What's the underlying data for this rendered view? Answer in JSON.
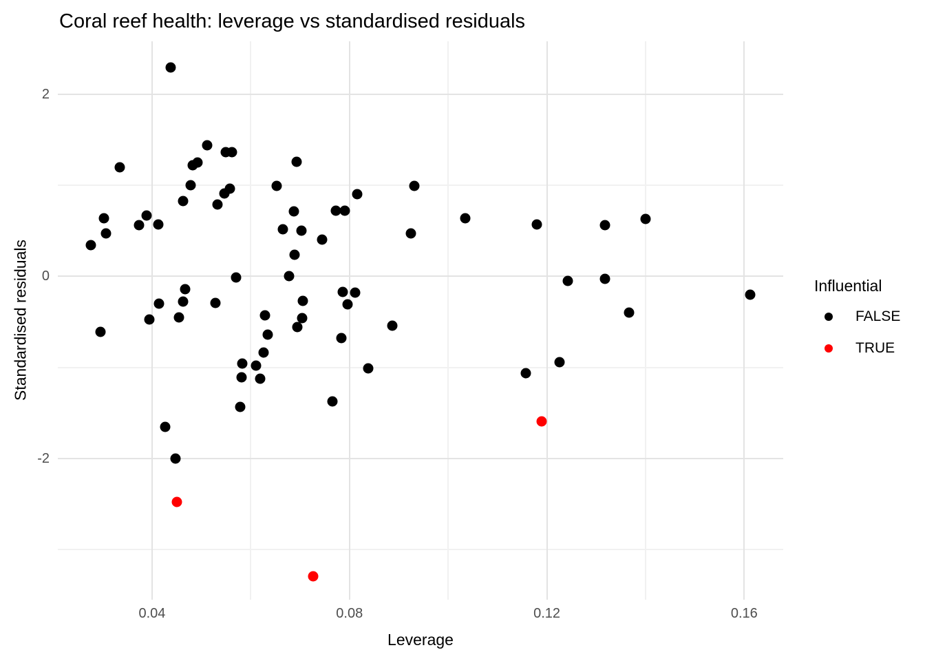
{
  "chart_data": {
    "type": "scatter",
    "title": "Coral reef health: leverage vs standardised residuals",
    "xlabel": "Leverage",
    "ylabel": "Standardised residuals",
    "xlim": [
      0.0209,
      0.1679
    ],
    "ylim": [
      -3.55,
      2.58
    ],
    "x_ticks": [
      0.04,
      0.08,
      0.12,
      0.16
    ],
    "x_tick_labels": [
      "0.04",
      "0.08",
      "0.12",
      "0.16"
    ],
    "y_ticks": [
      2,
      0,
      -2
    ],
    "y_tick_labels": [
      "2",
      "0",
      "-2"
    ],
    "x_minor_gridlines": [
      0.06,
      0.1,
      0.14
    ],
    "y_minor_gridlines": [
      1,
      -1,
      -3
    ],
    "grid": true,
    "legend": {
      "title": "Influential",
      "position": "right",
      "entries": [
        {
          "label": "FALSE",
          "color": "#000000"
        },
        {
          "label": "TRUE",
          "color": "#ff0000"
        }
      ]
    },
    "series": [
      {
        "name": "FALSE",
        "color": "#000000",
        "points": [
          [
            0.0438,
            2.29
          ],
          [
            0.0334,
            1.2
          ],
          [
            0.0512,
            1.44
          ],
          [
            0.0549,
            1.36
          ],
          [
            0.0562,
            1.36
          ],
          [
            0.0482,
            1.22
          ],
          [
            0.0492,
            1.25
          ],
          [
            0.0693,
            1.26
          ],
          [
            0.0478,
            1.0
          ],
          [
            0.0547,
            0.91
          ],
          [
            0.0558,
            0.96
          ],
          [
            0.0653,
            0.99
          ],
          [
            0.0463,
            0.83
          ],
          [
            0.0533,
            0.79
          ],
          [
            0.0687,
            0.71
          ],
          [
            0.0303,
            0.64
          ],
          [
            0.0389,
            0.67
          ],
          [
            0.0373,
            0.56
          ],
          [
            0.0413,
            0.57
          ],
          [
            0.0773,
            0.72
          ],
          [
            0.079,
            0.72
          ],
          [
            0.0665,
            0.52
          ],
          [
            0.0703,
            0.5
          ],
          [
            0.0307,
            0.47
          ],
          [
            0.0276,
            0.34
          ],
          [
            0.0744,
            0.4
          ],
          [
            0.0689,
            0.24
          ],
          [
            0.0932,
            0.99
          ],
          [
            0.0816,
            0.9
          ],
          [
            0.1035,
            0.64
          ],
          [
            0.118,
            0.57
          ],
          [
            0.1318,
            0.56
          ],
          [
            0.0924,
            0.47
          ],
          [
            0.14,
            0.63
          ],
          [
            0.057,
            -0.01
          ],
          [
            0.0677,
            0.0
          ],
          [
            0.0467,
            -0.14
          ],
          [
            0.0414,
            -0.3
          ],
          [
            0.0463,
            -0.28
          ],
          [
            0.0529,
            -0.29
          ],
          [
            0.0395,
            -0.47
          ],
          [
            0.0455,
            -0.45
          ],
          [
            0.0296,
            -0.61
          ],
          [
            0.0629,
            -0.43
          ],
          [
            0.0635,
            -0.64
          ],
          [
            0.0706,
            -0.27
          ],
          [
            0.0704,
            -0.46
          ],
          [
            0.0695,
            -0.56
          ],
          [
            0.0626,
            -0.84
          ],
          [
            0.0583,
            -0.96
          ],
          [
            0.061,
            -0.98
          ],
          [
            0.0582,
            -1.11
          ],
          [
            0.0619,
            -1.12
          ],
          [
            0.0786,
            -0.17
          ],
          [
            0.0812,
            -0.18
          ],
          [
            0.0796,
            -0.31
          ],
          [
            0.0784,
            -0.68
          ],
          [
            0.0887,
            -0.54
          ],
          [
            0.0838,
            -1.01
          ],
          [
            0.0765,
            -1.37
          ],
          [
            0.0579,
            -1.43
          ],
          [
            0.0427,
            -1.65
          ],
          [
            0.0448,
            -2.0
          ],
          [
            0.1242,
            -0.05
          ],
          [
            0.1318,
            -0.03
          ],
          [
            0.1366,
            -0.4
          ],
          [
            0.1226,
            -0.94
          ],
          [
            0.1158,
            -1.06
          ],
          [
            0.1612,
            -0.2
          ]
        ]
      },
      {
        "name": "TRUE",
        "color": "#ff0000",
        "points": [
          [
            0.1189,
            -1.59
          ],
          [
            0.045,
            -2.48
          ],
          [
            0.0727,
            -3.29
          ]
        ]
      }
    ],
    "colors": {
      "background": "#ffffff",
      "grid_major": "#e3e3e3",
      "grid_minor": "#f1f1f1",
      "tick_label": "#4d4d4d",
      "text": "#000000"
    }
  }
}
